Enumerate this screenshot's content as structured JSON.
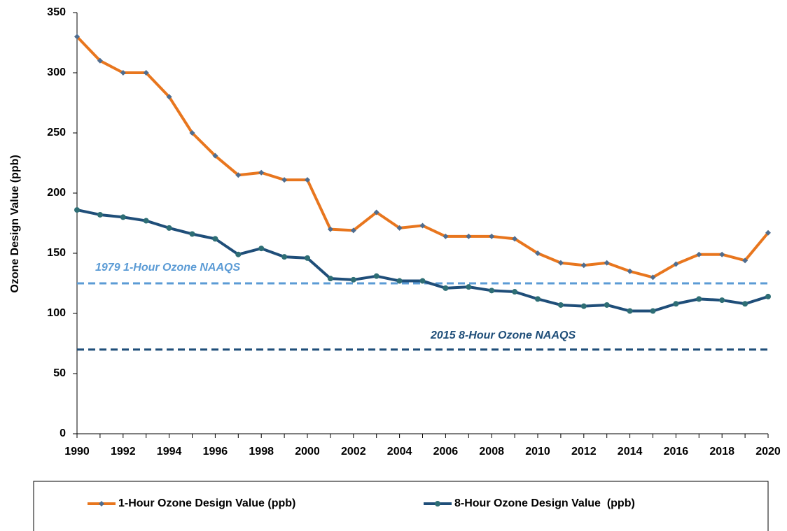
{
  "chart_data": {
    "type": "line",
    "y_label": "Ozone Design Value (ppb)",
    "x": [
      1990,
      1991,
      1992,
      1993,
      1994,
      1995,
      1996,
      1997,
      1998,
      1999,
      2000,
      2001,
      2002,
      2003,
      2004,
      2005,
      2006,
      2007,
      2008,
      2009,
      2010,
      2011,
      2012,
      2013,
      2014,
      2015,
      2016,
      2017,
      2018,
      2019,
      2020
    ],
    "series": [
      {
        "name": "1-Hour Ozone Design Value (ppb)",
        "color": "#e8761e",
        "marker_color": "#4f6d8f",
        "marker": "diamond",
        "values": [
          330,
          310,
          300,
          300,
          280,
          250,
          231,
          215,
          217,
          211,
          211,
          170,
          169,
          184,
          171,
          173,
          164,
          164,
          164,
          162,
          150,
          142,
          140,
          142,
          135,
          130,
          141,
          149,
          149,
          144,
          167
        ]
      },
      {
        "name": "8-Hour Ozone Design Value  (ppb)",
        "color": "#1f4e79",
        "marker_color": "#2e6e75",
        "marker": "circle",
        "values": [
          186,
          182,
          180,
          177,
          171,
          166,
          162,
          149,
          154,
          147,
          146,
          129,
          128,
          131,
          127,
          127,
          121,
          122,
          119,
          118,
          112,
          107,
          106,
          107,
          102,
          102,
          108,
          112,
          111,
          108,
          114
        ]
      }
    ],
    "reference_lines": [
      {
        "value": 125,
        "label": "1979 1-Hour Ozone NAAQS",
        "color": "#5b9bd5"
      },
      {
        "value": 70,
        "label": "2015 8-Hour Ozone NAAQS",
        "color": "#1f4e79"
      }
    ],
    "xlim": [
      1990,
      2020
    ],
    "xticks": [
      1990,
      1992,
      1994,
      1996,
      1998,
      2000,
      2002,
      2004,
      2006,
      2008,
      2010,
      2012,
      2014,
      2016,
      2018,
      2020
    ],
    "ylim": [
      0,
      350
    ],
    "yticks": [
      0,
      50,
      100,
      150,
      200,
      250,
      300,
      350
    ],
    "legend": "bottom"
  }
}
